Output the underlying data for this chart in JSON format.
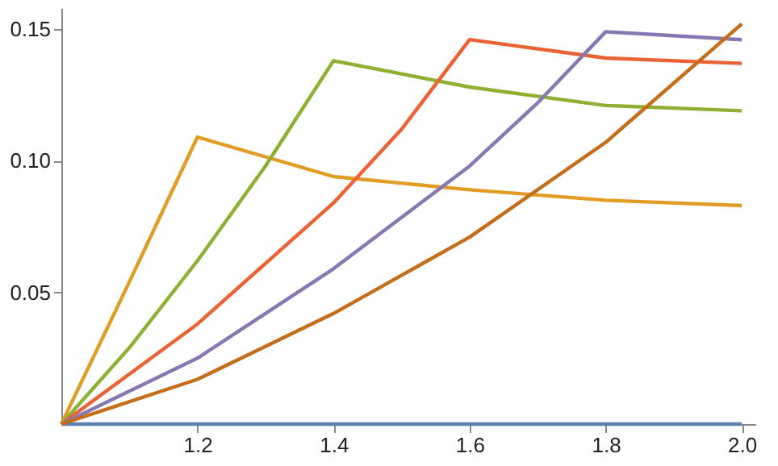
{
  "chart_data": {
    "type": "line",
    "series": [
      {
        "color": "#5e81b5",
        "x": [
          1.0,
          2.0
        ],
        "values": [
          0,
          0
        ]
      },
      {
        "color": "#e19c24",
        "x": [
          1.0,
          1.1,
          1.2,
          1.4,
          1.6,
          1.8,
          2.0
        ],
        "values": [
          0,
          0.054,
          0.109,
          0.094,
          0.089,
          0.085,
          0.083
        ]
      },
      {
        "color": "#8fb032",
        "x": [
          1.0,
          1.1,
          1.2,
          1.3,
          1.4,
          1.6,
          1.8,
          2.0
        ],
        "values": [
          0,
          0.029,
          0.062,
          0.098,
          0.138,
          0.128,
          0.121,
          0.119
        ]
      },
      {
        "color": "#eb6235",
        "x": [
          1.0,
          1.2,
          1.4,
          1.5,
          1.6,
          1.8,
          2.0
        ],
        "values": [
          0,
          0.038,
          0.084,
          0.112,
          0.146,
          0.139,
          0.137
        ]
      },
      {
        "color": "#8778b3",
        "x": [
          1.0,
          1.2,
          1.4,
          1.6,
          1.7,
          1.8,
          2.0
        ],
        "values": [
          0,
          0.025,
          0.059,
          0.098,
          0.122,
          0.149,
          0.146
        ]
      },
      {
        "color": "#c56e1a",
        "x": [
          1.0,
          1.2,
          1.4,
          1.6,
          1.8,
          2.0
        ],
        "values": [
          0,
          0.017,
          0.042,
          0.071,
          0.107,
          0.152
        ]
      }
    ],
    "xlim": [
      1.0,
      2.02
    ],
    "ylim": [
      0,
      0.158
    ],
    "xticks": [
      1.2,
      1.4,
      1.6,
      1.8,
      {
        "value": 2,
        "label": "2.0"
      }
    ],
    "yticks": [
      {
        "value": 0.05,
        "label": "0.05"
      },
      {
        "value": 0.1,
        "label": "0.10"
      },
      {
        "value": 0.15,
        "label": "0.15"
      }
    ],
    "grid": false,
    "legend": false,
    "line_style": "solid",
    "marker": "none"
  }
}
